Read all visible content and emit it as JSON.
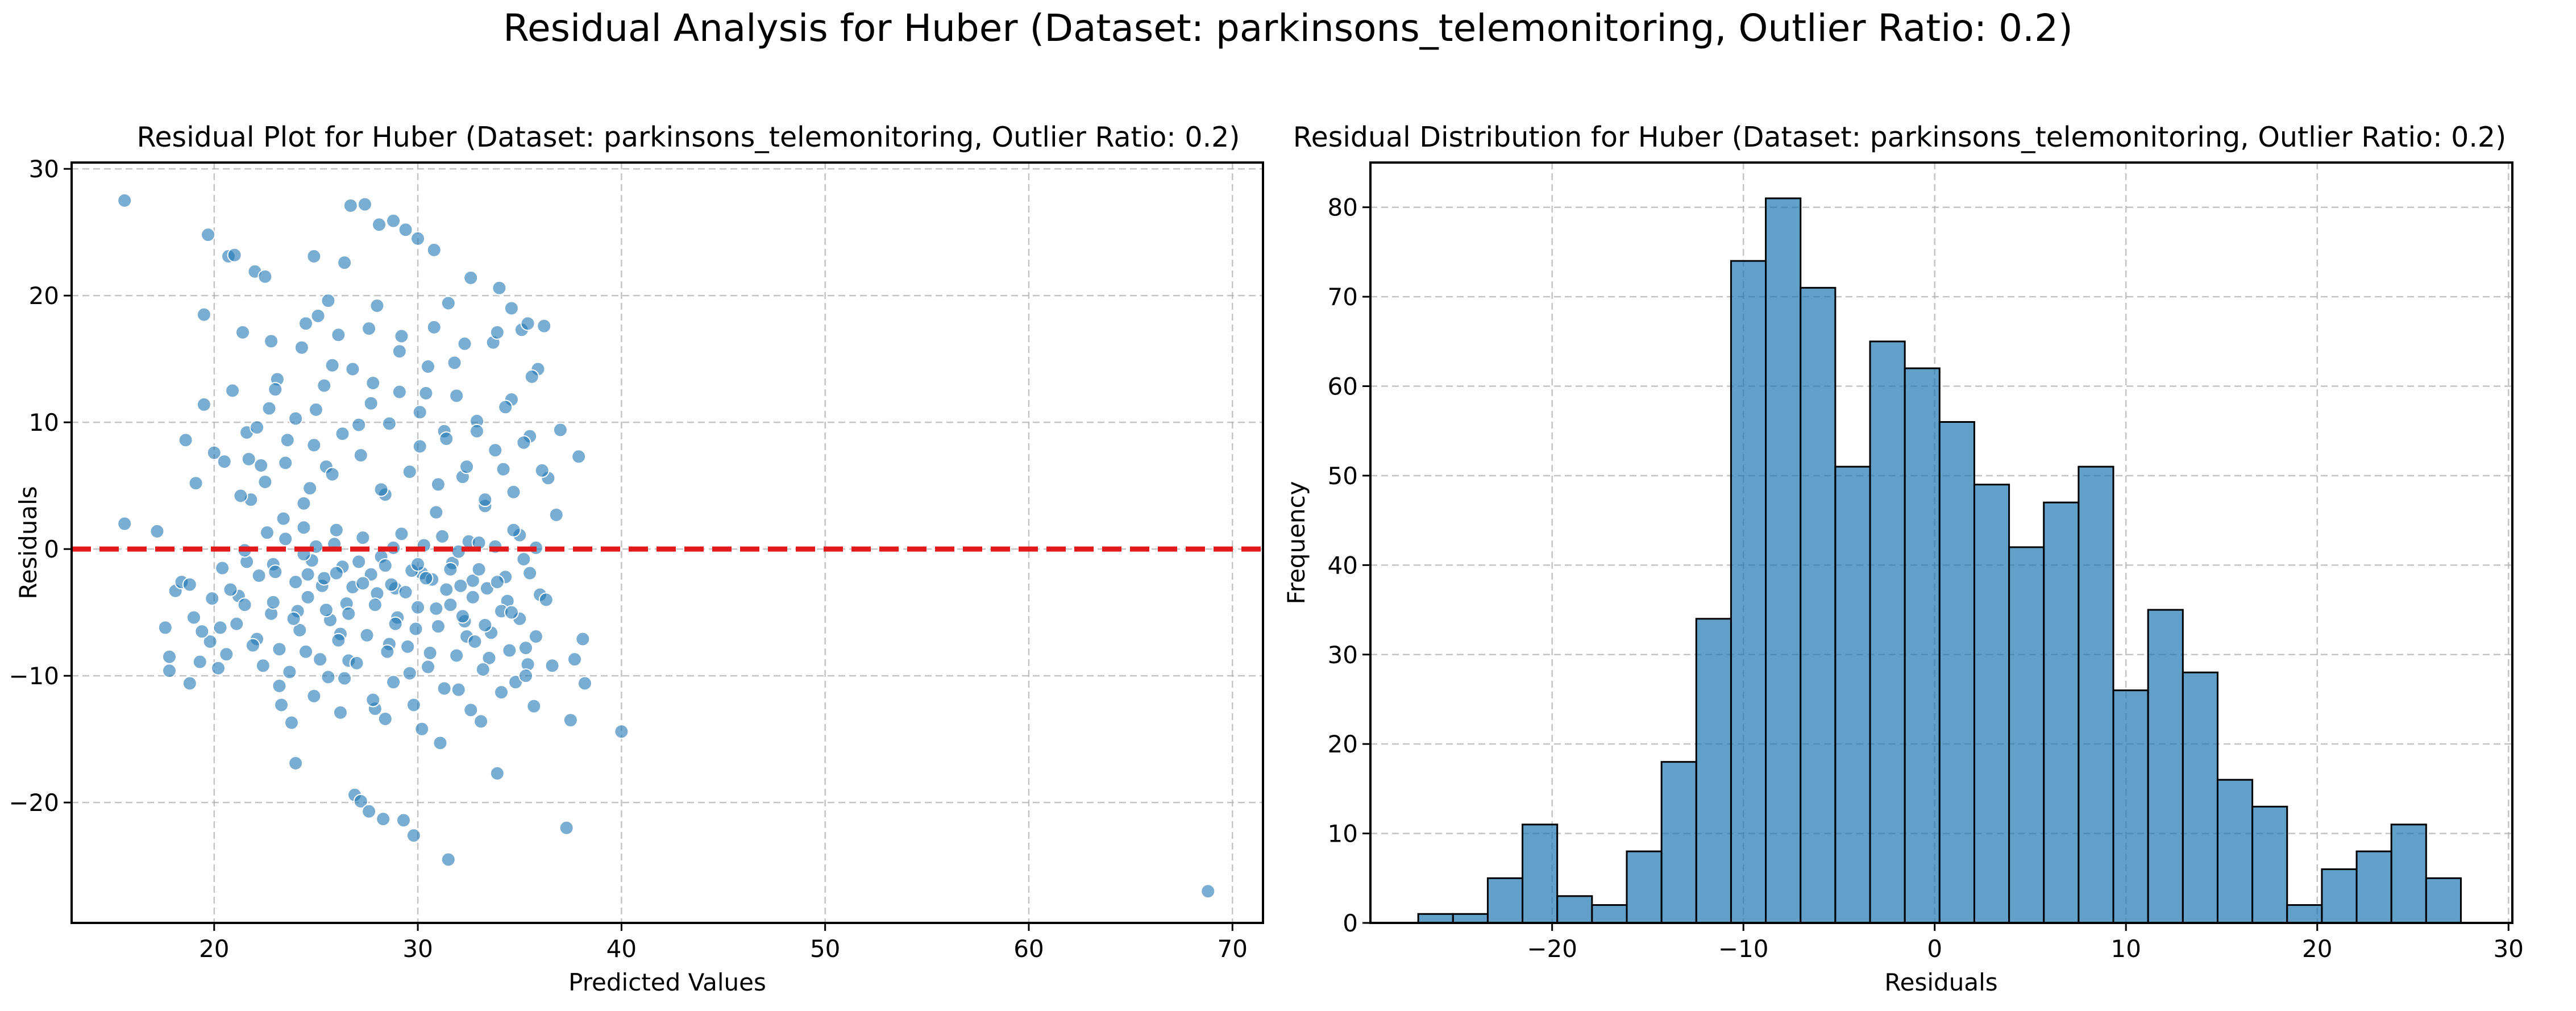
{
  "figure": {
    "suptitle": "Residual Analysis for Huber (Dataset: parkinsons_telemonitoring, Outlier Ratio: 0.2)"
  },
  "colors": {
    "point": "#1f77b4",
    "bar": "#1f77b4",
    "zero_line": "#e31a1c",
    "grid": "#b0b0b0",
    "bar_edge": "#000000"
  },
  "chart_data": [
    {
      "type": "scatter",
      "title": "Residual Plot for Huber (Dataset: parkinsons_telemonitoring, Outlier Ratio: 0.2)",
      "xlabel": "Predicted Values",
      "ylabel": "Residuals",
      "xlim": [
        13,
        71.5
      ],
      "ylim": [
        -29.5,
        30.5
      ],
      "xticks": [
        20,
        30,
        40,
        50,
        60,
        70
      ],
      "yticks": [
        -20,
        -10,
        0,
        10,
        20,
        30
      ],
      "grid": true,
      "reference_line": {
        "y": 0,
        "style": "dashed",
        "color": "#e31a1c"
      },
      "points": [
        [
          15.6,
          27.5
        ],
        [
          15.6,
          2
        ],
        [
          17.2,
          1.4
        ],
        [
          17.6,
          -6.2
        ],
        [
          17.8,
          -8.5
        ],
        [
          17.8,
          -9.6
        ],
        [
          18.1,
          -3.3
        ],
        [
          18.4,
          -2.6
        ],
        [
          18.6,
          8.6
        ],
        [
          18.8,
          -10.6
        ],
        [
          19.0,
          -5.4
        ],
        [
          19.1,
          5.2
        ],
        [
          19.3,
          -8.9
        ],
        [
          19.5,
          11.4
        ],
        [
          19.5,
          18.5
        ],
        [
          19.7,
          24.8
        ],
        [
          19.8,
          -7.3
        ],
        [
          20.0,
          7.6
        ],
        [
          20.2,
          -9.4
        ],
        [
          20.4,
          -1.5
        ],
        [
          20.5,
          6.9
        ],
        [
          20.7,
          23.1
        ],
        [
          20.9,
          12.5
        ],
        [
          21.0,
          23.2
        ],
        [
          21.2,
          -3.7
        ],
        [
          21.4,
          17.1
        ],
        [
          21.6,
          9.2
        ],
        [
          21.8,
          3.9
        ],
        [
          22.0,
          21.9
        ],
        [
          22.1,
          -7.1
        ],
        [
          22.3,
          6.6
        ],
        [
          22.5,
          21.5
        ],
        [
          22.7,
          11.1
        ],
        [
          22.9,
          -1.2
        ],
        [
          23.1,
          13.4
        ],
        [
          23.3,
          -12.3
        ],
        [
          23.4,
          2.4
        ],
        [
          23.6,
          8.6
        ],
        [
          23.8,
          -13.7
        ],
        [
          24.0,
          -16.9
        ],
        [
          24.1,
          -4.9
        ],
        [
          24.3,
          15.9
        ],
        [
          24.5,
          -8.1
        ],
        [
          24.7,
          4.8
        ],
        [
          24.9,
          23.1
        ],
        [
          25.0,
          11.0
        ],
        [
          25.1,
          18.4
        ],
        [
          25.3,
          -2.9
        ],
        [
          25.5,
          6.5
        ],
        [
          25.6,
          -10.1
        ],
        [
          25.8,
          14.5
        ],
        [
          26.0,
          1.5
        ],
        [
          26.2,
          -6.7
        ],
        [
          26.4,
          22.6
        ],
        [
          26.6,
          -8.8
        ],
        [
          26.7,
          27.1
        ],
        [
          26.9,
          -19.4
        ],
        [
          27.1,
          9.8
        ],
        [
          27.2,
          -19.9
        ],
        [
          27.4,
          27.2
        ],
        [
          27.6,
          -20.7
        ],
        [
          27.8,
          13.1
        ],
        [
          27.9,
          -12.6
        ],
        [
          28.1,
          25.6
        ],
        [
          28.3,
          -21.3
        ],
        [
          28.4,
          4.3
        ],
        [
          28.6,
          -7.5
        ],
        [
          28.8,
          25.9
        ],
        [
          28.9,
          -3.1
        ],
        [
          29.1,
          15.6
        ],
        [
          29.3,
          -21.4
        ],
        [
          29.4,
          25.2
        ],
        [
          29.6,
          -9.8
        ],
        [
          29.8,
          -22.6
        ],
        [
          30.0,
          24.5
        ],
        [
          30.1,
          8.1
        ],
        [
          30.2,
          -1.9
        ],
        [
          30.4,
          12.3
        ],
        [
          30.6,
          -8.2
        ],
        [
          30.8,
          23.6
        ],
        [
          30.9,
          2.9
        ],
        [
          31.1,
          -15.3
        ],
        [
          31.3,
          9.3
        ],
        [
          31.5,
          -24.5
        ],
        [
          31.6,
          -4.4
        ],
        [
          31.8,
          14.7
        ],
        [
          32.0,
          -11.1
        ],
        [
          32.2,
          5.7
        ],
        [
          32.4,
          -6.9
        ],
        [
          32.6,
          21.4
        ],
        [
          32.7,
          -2.5
        ],
        [
          32.9,
          10.1
        ],
        [
          33.1,
          -13.6
        ],
        [
          33.3,
          3.4
        ],
        [
          33.5,
          -8.6
        ],
        [
          33.7,
          16.3
        ],
        [
          33.9,
          -17.7
        ],
        [
          34.0,
          20.6
        ],
        [
          34.2,
          6.3
        ],
        [
          34.4,
          -4.1
        ],
        [
          34.6,
          11.8
        ],
        [
          34.8,
          -10.5
        ],
        [
          35.0,
          1.1
        ],
        [
          35.1,
          17.3
        ],
        [
          35.3,
          -7.8
        ],
        [
          35.5,
          8.9
        ],
        [
          35.7,
          -12.4
        ],
        [
          35.9,
          14.2
        ],
        [
          36.0,
          -3.6
        ],
        [
          36.2,
          17.6
        ],
        [
          36.4,
          5.6
        ],
        [
          36.6,
          -9.2
        ],
        [
          36.8,
          2.7
        ],
        [
          37.0,
          9.4
        ],
        [
          37.3,
          -22.0
        ],
        [
          37.5,
          -13.5
        ],
        [
          37.7,
          -8.7
        ],
        [
          37.9,
          7.3
        ],
        [
          38.1,
          -7.1
        ],
        [
          38.2,
          -10.6
        ],
        [
          40.0,
          -14.4
        ],
        [
          68.8,
          -27.0
        ],
        [
          18.8,
          -2.8
        ],
        [
          19.4,
          -6.5
        ],
        [
          19.9,
          -3.9
        ],
        [
          20.3,
          -6.2
        ],
        [
          20.6,
          -8.3
        ],
        [
          21.1,
          -5.9
        ],
        [
          21.5,
          -4.4
        ],
        [
          21.9,
          -7.6
        ],
        [
          22.4,
          -9.2
        ],
        [
          22.8,
          -5.1
        ],
        [
          23.2,
          -7.9
        ],
        [
          23.7,
          -9.7
        ],
        [
          24.2,
          -6.4
        ],
        [
          24.6,
          -3.8
        ],
        [
          25.2,
          -8.7
        ],
        [
          25.7,
          -5.6
        ],
        [
          26.1,
          -7.2
        ],
        [
          26.5,
          -4.3
        ],
        [
          27.0,
          -9.0
        ],
        [
          27.5,
          -6.8
        ],
        [
          28.0,
          -3.5
        ],
        [
          28.5,
          -8.1
        ],
        [
          29.0,
          -5.4
        ],
        [
          29.5,
          -7.7
        ],
        [
          30.0,
          -4.6
        ],
        [
          30.5,
          -9.3
        ],
        [
          31.0,
          -6.1
        ],
        [
          31.4,
          -3.2
        ],
        [
          31.9,
          -8.4
        ],
        [
          32.3,
          -5.7
        ],
        [
          32.8,
          -7.3
        ],
        [
          33.2,
          -9.5
        ],
        [
          33.6,
          -6.6
        ],
        [
          34.1,
          -4.9
        ],
        [
          34.5,
          -8.0
        ],
        [
          35.0,
          -5.5
        ],
        [
          35.4,
          -9.1
        ],
        [
          35.8,
          -6.9
        ],
        [
          36.3,
          -4.0
        ],
        [
          22.2,
          -2.1
        ],
        [
          22.6,
          1.3
        ],
        [
          23.0,
          -1.8
        ],
        [
          23.5,
          0.8
        ],
        [
          24.0,
          -2.6
        ],
        [
          24.4,
          1.7
        ],
        [
          24.8,
          -0.9
        ],
        [
          25.4,
          -2.3
        ],
        [
          25.9,
          0.4
        ],
        [
          26.3,
          -1.4
        ],
        [
          26.8,
          -3.0
        ],
        [
          27.3,
          0.9
        ],
        [
          27.7,
          -2.0
        ],
        [
          28.2,
          -0.6
        ],
        [
          28.7,
          -2.8
        ],
        [
          29.2,
          1.2
        ],
        [
          29.7,
          -1.7
        ],
        [
          30.3,
          0.3
        ],
        [
          30.7,
          -2.4
        ],
        [
          31.2,
          1.0
        ],
        [
          31.7,
          -1.1
        ],
        [
          32.1,
          -2.9
        ],
        [
          32.5,
          0.6
        ],
        [
          33.0,
          -1.6
        ],
        [
          33.4,
          -3.1
        ],
        [
          33.8,
          0.2
        ],
        [
          34.3,
          -2.2
        ],
        [
          34.7,
          1.5
        ],
        [
          35.2,
          -0.8
        ],
        [
          21.3,
          4.2
        ],
        [
          21.7,
          7.1
        ],
        [
          22.1,
          9.6
        ],
        [
          22.5,
          5.3
        ],
        [
          23.0,
          12.6
        ],
        [
          23.5,
          6.8
        ],
        [
          24.0,
          10.3
        ],
        [
          24.4,
          3.6
        ],
        [
          24.9,
          8.2
        ],
        [
          25.4,
          12.9
        ],
        [
          25.8,
          5.9
        ],
        [
          26.3,
          9.1
        ],
        [
          26.8,
          14.2
        ],
        [
          27.2,
          7.4
        ],
        [
          27.7,
          11.5
        ],
        [
          28.2,
          4.7
        ],
        [
          28.6,
          9.9
        ],
        [
          29.1,
          12.4
        ],
        [
          29.6,
          6.1
        ],
        [
          30.1,
          10.8
        ],
        [
          30.5,
          14.4
        ],
        [
          31.0,
          5.1
        ],
        [
          31.4,
          8.7
        ],
        [
          31.9,
          12.1
        ],
        [
          32.4,
          6.5
        ],
        [
          32.9,
          9.3
        ],
        [
          33.3,
          3.9
        ],
        [
          33.8,
          7.8
        ],
        [
          34.3,
          11.2
        ],
        [
          34.7,
          4.5
        ],
        [
          35.2,
          8.4
        ],
        [
          35.6,
          13.6
        ],
        [
          36.1,
          6.2
        ],
        [
          20.8,
          -3.2
        ],
        [
          21.6,
          -1.0
        ],
        [
          22.9,
          -4.2
        ],
        [
          23.9,
          -5.5
        ],
        [
          24.6,
          -2.0
        ],
        [
          25.5,
          -4.8
        ],
        [
          26.0,
          -1.9
        ],
        [
          26.6,
          -5.1
        ],
        [
          27.3,
          -2.7
        ],
        [
          27.9,
          -4.4
        ],
        [
          28.4,
          -1.3
        ],
        [
          28.9,
          -5.9
        ],
        [
          29.4,
          -3.4
        ],
        [
          29.9,
          -6.3
        ],
        [
          30.4,
          -2.3
        ],
        [
          30.9,
          -4.7
        ],
        [
          31.6,
          -1.6
        ],
        [
          32.2,
          -5.3
        ],
        [
          32.7,
          -3.8
        ],
        [
          33.3,
          -6.0
        ],
        [
          33.9,
          -2.6
        ],
        [
          34.6,
          -5.0
        ],
        [
          35.5,
          -1.9
        ],
        [
          23.2,
          -10.8
        ],
        [
          24.9,
          -11.6
        ],
        [
          26.4,
          -10.2
        ],
        [
          27.8,
          -11.9
        ],
        [
          28.8,
          -10.5
        ],
        [
          29.8,
          -12.3
        ],
        [
          31.3,
          -11.0
        ],
        [
          32.6,
          -12.7
        ],
        [
          34.1,
          -11.3
        ],
        [
          35.3,
          -10.0
        ],
        [
          30.2,
          -14.2
        ],
        [
          28.4,
          -13.4
        ],
        [
          26.2,
          -12.9
        ],
        [
          21.5,
          -0.1
        ],
        [
          25.0,
          0.2
        ],
        [
          28.8,
          0.1
        ],
        [
          32.0,
          -0.2
        ],
        [
          35.8,
          0.1
        ],
        [
          33.0,
          0.5
        ],
        [
          24.4,
          -0.4
        ],
        [
          27.1,
          -1.0
        ],
        [
          30.0,
          -1.2
        ],
        [
          22.8,
          16.4
        ],
        [
          24.5,
          17.8
        ],
        [
          26.1,
          16.9
        ],
        [
          27.6,
          17.4
        ],
        [
          29.2,
          16.8
        ],
        [
          30.8,
          17.5
        ],
        [
          32.3,
          16.2
        ],
        [
          33.9,
          17.1
        ],
        [
          35.4,
          17.8
        ],
        [
          25.6,
          19.6
        ],
        [
          28.0,
          19.2
        ],
        [
          31.5,
          19.4
        ],
        [
          34.6,
          19.0
        ]
      ]
    },
    {
      "type": "bar",
      "title": "Residual Distribution for Huber (Dataset: parkinsons_telemonitoring, Outlier Ratio: 0.2)",
      "xlabel": "Residuals",
      "ylabel": "Frequency",
      "xlim": [
        -29.5,
        30.2
      ],
      "ylim": [
        0,
        85
      ],
      "xticks": [
        -20,
        -10,
        0,
        10,
        20,
        30
      ],
      "yticks": [
        0,
        10,
        20,
        30,
        40,
        50,
        60,
        70,
        80
      ],
      "grid": true,
      "bin_start": -27.0,
      "bin_width": 1.817,
      "values": [
        1,
        1,
        5,
        11,
        3,
        2,
        8,
        18,
        34,
        74,
        81,
        71,
        51,
        65,
        62,
        56,
        49,
        42,
        47,
        51,
        26,
        35,
        28,
        16,
        13,
        2,
        6,
        8,
        11,
        5
      ]
    }
  ]
}
